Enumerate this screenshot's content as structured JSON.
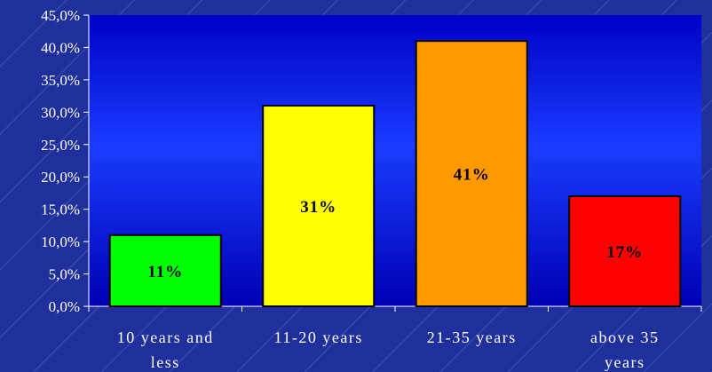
{
  "chart_data": {
    "type": "bar",
    "categories": [
      [
        "10 years and",
        "less"
      ],
      [
        "11-20 years"
      ],
      [
        "21-35 years"
      ],
      [
        "above 35",
        "years"
      ]
    ],
    "values": [
      11,
      31,
      41,
      17
    ],
    "data_labels": [
      "11%",
      "31%",
      "41%",
      "17%"
    ],
    "ylim": [
      0,
      45
    ],
    "y_ticks": [
      0,
      5,
      10,
      15,
      20,
      25,
      30,
      35,
      40,
      45
    ],
    "y_tick_labels": [
      "0,0%",
      "5,0%",
      "10,0%",
      "15,0%",
      "20,0%",
      "25,0%",
      "30,0%",
      "35,0%",
      "40,0%",
      "45,0%"
    ],
    "title": "",
    "xlabel": "",
    "ylabel": "",
    "grid": false,
    "legend": "none",
    "bar_colors": [
      "#00ff00",
      "#ffff00",
      "#ff9900",
      "#ff0000"
    ],
    "label_colors": [
      "#000000",
      "#000000",
      "#000000",
      "#000000"
    ],
    "plot_background": [
      "#0000c8",
      "#1a3cff",
      "#0000b4"
    ]
  }
}
